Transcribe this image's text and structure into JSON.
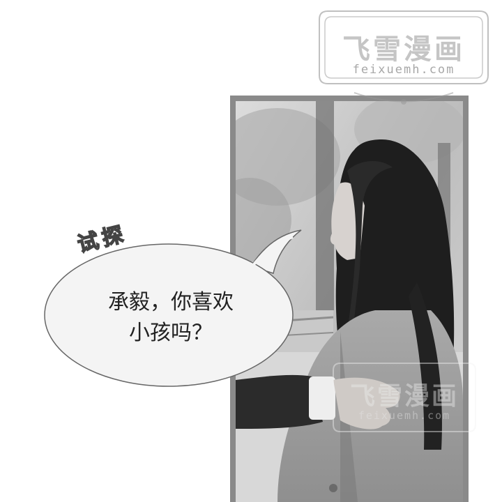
{
  "watermark": {
    "title": "飞雪漫画",
    "url": "feixuemh.com"
  },
  "sound_effect": "试探",
  "speech_bubble": {
    "line1": "承毅，你喜欢",
    "line2": "小孩吗？"
  },
  "colors": {
    "frame": "#8a8a8a",
    "bubble_fill": "#f4f4f4",
    "bubble_stroke": "#666666",
    "watermark": "#9a9a9a"
  }
}
